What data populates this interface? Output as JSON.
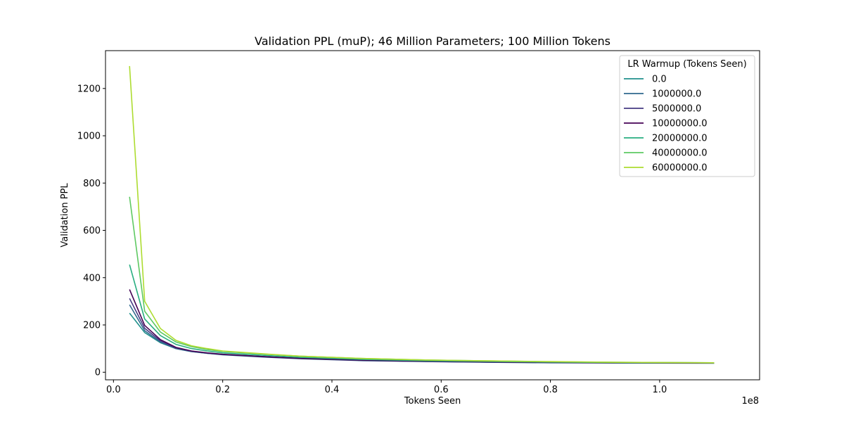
{
  "chart_data": {
    "type": "line",
    "title": "Validation PPL (muP); 46 Million Parameters; 100 Million Tokens",
    "xlabel": "Tokens Seen",
    "ylabel": "Validation PPL",
    "x_offset_label": "1e8",
    "xlim": [
      -0.0146,
      1.183
    ],
    "ylim": [
      -32,
      1360
    ],
    "x_ticks": [
      0.0,
      0.2,
      0.4,
      0.6,
      0.8,
      1.0
    ],
    "x_tick_labels": [
      "0.0",
      "0.2",
      "0.4",
      "0.6",
      "0.8",
      "1.0"
    ],
    "y_ticks": [
      0,
      200,
      400,
      600,
      800,
      1000,
      1200
    ],
    "y_tick_labels": [
      "0",
      "200",
      "400",
      "600",
      "800",
      "1000",
      "1200"
    ],
    "grid": false,
    "legend": {
      "title": "LR Warmup (Tokens Seen)",
      "position": "top-right"
    },
    "series": [
      {
        "name": "0.0",
        "color": "#21918c",
        "x": [
          0.0295,
          0.0571,
          0.0858,
          0.1143,
          0.1429,
          0.1714,
          0.2,
          0.286,
          0.343,
          0.457,
          0.571,
          0.686,
          0.8,
          0.914,
          1.1
        ],
        "y": [
          250,
          168,
          125,
          100,
          88,
          80,
          75,
          65,
          58,
          50,
          46,
          43,
          41,
          40,
          39
        ]
      },
      {
        "name": "1000000.0",
        "color": "#31688e",
        "x": [
          0.0295,
          0.0571,
          0.0858,
          0.1143,
          0.1429,
          0.1714,
          0.2,
          0.286,
          0.343,
          0.457,
          0.571,
          0.686,
          0.8,
          0.914,
          1.1
        ],
        "y": [
          285,
          176,
          128,
          100,
          87,
          80,
          74,
          63,
          57,
          49,
          45,
          42,
          40,
          39,
          38
        ]
      },
      {
        "name": "5000000.0",
        "color": "#443a83",
        "x": [
          0.0295,
          0.0571,
          0.0858,
          0.1143,
          0.1429,
          0.1714,
          0.2,
          0.286,
          0.343,
          0.457,
          0.571,
          0.686,
          0.8,
          0.914,
          1.1
        ],
        "y": [
          312,
          186,
          133,
          103,
          89,
          81,
          75,
          64,
          58,
          50,
          46,
          43,
          41,
          40,
          39
        ]
      },
      {
        "name": "10000000.0",
        "color": "#440154",
        "x": [
          0.0295,
          0.0571,
          0.0858,
          0.1143,
          0.1429,
          0.1714,
          0.2,
          0.286,
          0.343,
          0.457,
          0.571,
          0.686,
          0.8,
          0.914,
          1.1
        ],
        "y": [
          350,
          198,
          138,
          105,
          90,
          82,
          76,
          65,
          59,
          51,
          47,
          44,
          42,
          40,
          39
        ]
      },
      {
        "name": "20000000.0",
        "color": "#28ae80",
        "x": [
          0.0295,
          0.0571,
          0.0858,
          0.1143,
          0.1429,
          0.1714,
          0.2,
          0.286,
          0.343,
          0.457,
          0.571,
          0.686,
          0.8,
          0.914,
          1.1
        ],
        "y": [
          455,
          225,
          155,
          118,
          100,
          90,
          82,
          70,
          63,
          54,
          49,
          46,
          43,
          41,
          40
        ]
      },
      {
        "name": "40000000.0",
        "color": "#5ec962",
        "x": [
          0.0295,
          0.0571,
          0.0858,
          0.1143,
          0.1429,
          0.1714,
          0.2,
          0.286,
          0.343,
          0.457,
          0.571,
          0.686,
          0.8,
          0.914,
          1.1
        ],
        "y": [
          742,
          258,
          170,
          128,
          108,
          96,
          88,
          75,
          68,
          58,
          52,
          48,
          44,
          42,
          40
        ]
      },
      {
        "name": "60000000.0",
        "color": "#addc30",
        "x": [
          0.0295,
          0.0571,
          0.0858,
          0.1143,
          0.1429,
          0.1714,
          0.2,
          0.286,
          0.343,
          0.457,
          0.571,
          0.686,
          0.8,
          0.914,
          1.1
        ],
        "y": [
          1295,
          300,
          185,
          135,
          112,
          100,
          90,
          76,
          68,
          58,
          52,
          48,
          45,
          42,
          40
        ]
      }
    ]
  }
}
